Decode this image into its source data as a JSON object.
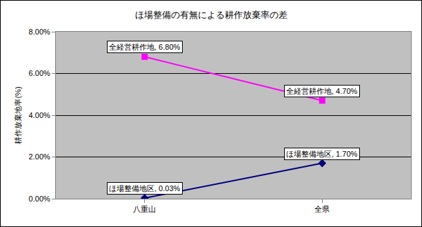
{
  "chart_data": {
    "type": "line",
    "title": "ほ場整備の有無による耕作放棄率の差",
    "y_label": "耕作放棄地率(%)",
    "categories": [
      "八重山",
      "全県"
    ],
    "series": [
      {
        "name": "全経営耕作地",
        "color": "#FF00FF",
        "marker": "square",
        "values": [
          6.8,
          4.7
        ],
        "value_labels": [
          "全経営耕作地, 6.80%",
          "全経営耕作地, 4.70%"
        ]
      },
      {
        "name": "ほ場整備地区",
        "color": "#000080",
        "marker": "diamond",
        "values": [
          0.03,
          1.7
        ],
        "value_labels": [
          "ほ場整備地区, 0.03%",
          "ほ場整備地区, 1.70%"
        ]
      }
    ],
    "ylim": [
      0,
      8
    ],
    "yticks": [
      {
        "value": 0,
        "label": "0.00%"
      },
      {
        "value": 2,
        "label": "2.00%"
      },
      {
        "value": 4,
        "label": "4.00%"
      },
      {
        "value": 6,
        "label": "6.00%"
      },
      {
        "value": 8,
        "label": "8.00%"
      }
    ],
    "grid": true,
    "data_labels": true
  }
}
